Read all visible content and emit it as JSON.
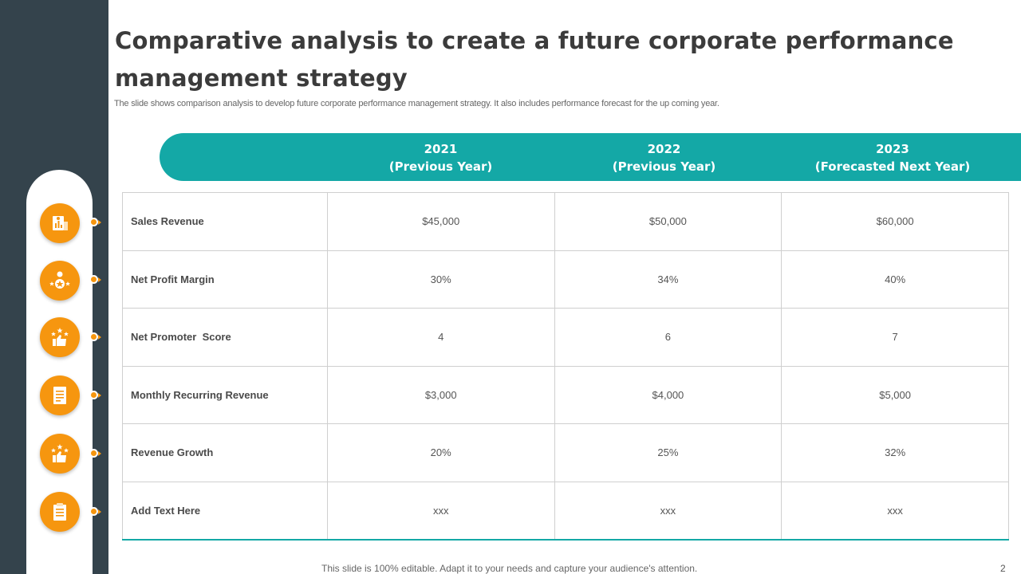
{
  "slide": {
    "title": "Comparative analysis to create a future corporate performance management strategy",
    "subtitle": "The slide shows comparison analysis to develop future corporate performance management strategy. It also includes performance forecast for the up coming year.",
    "footer": "This slide is 100% editable. Adapt it to your needs and capture your audience's attention.",
    "page_number": "2"
  },
  "colors": {
    "sidebar": "#34434c",
    "accent_teal": "#14a8a6",
    "icon_orange": "#f6960f"
  },
  "table": {
    "columns": [
      {
        "year": "2021",
        "note": "(Previous Year)"
      },
      {
        "year": "2022",
        "note": "(Previous Year)"
      },
      {
        "year": "2023",
        "note": "(Forecasted Next Year)"
      }
    ],
    "rows": [
      {
        "label": "Sales Revenue",
        "icon": "sales-chart-icon",
        "values": [
          "$45,000",
          "$50,000",
          "$60,000"
        ]
      },
      {
        "label": "Net Profit Margin",
        "icon": "award-person-icon",
        "values": [
          "30%",
          "34%",
          "40%"
        ]
      },
      {
        "label": "Net Promoter  Score",
        "icon": "thumbs-up-stars-icon",
        "values": [
          "4",
          "6",
          "7"
        ]
      },
      {
        "label": "Monthly Recurring Revenue",
        "icon": "document-icon",
        "values": [
          "$3,000",
          "$4,000",
          "$5,000"
        ]
      },
      {
        "label": "Revenue Growth",
        "icon": "thumbs-up-stars-icon",
        "values": [
          "20%",
          "25%",
          "32%"
        ]
      },
      {
        "label": "Add Text Here",
        "icon": "clipboard-icon",
        "values": [
          "xxx",
          "xxx",
          "xxx"
        ]
      }
    ]
  }
}
